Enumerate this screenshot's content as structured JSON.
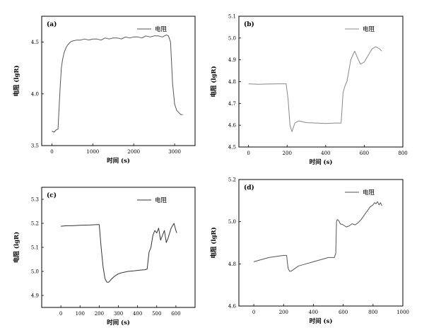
{
  "figure": {
    "panels": [
      {
        "panel_label": "(a)",
        "ylabel": "电阻 (lgR)",
        "xlabel": "时间 (s)",
        "legend": "电阻"
      },
      {
        "panel_label": "(b)",
        "ylabel": "电阻 (lgR)",
        "xlabel": "时间 (s)",
        "legend": "电阻"
      },
      {
        "panel_label": "(c)",
        "ylabel": "电阻 (lgR)",
        "xlabel": "时间 (s)",
        "legend": "电阻"
      },
      {
        "panel_label": "(d)",
        "ylabel": "电阻 (lgR)",
        "xlabel": "时间 (s)",
        "legend": "电阻"
      }
    ]
  },
  "chart_data": [
    {
      "type": "line",
      "title": "(a)",
      "xlabel": "时间 (s)",
      "ylabel": "电阻 (lgR)",
      "xlim": [
        -250,
        3500
      ],
      "ylim": [
        3.5,
        4.75
      ],
      "xticks": [
        0,
        1000,
        2000,
        3000
      ],
      "yticks": [
        3.5,
        4.0,
        4.5
      ],
      "ytick_format": "1",
      "legend_position": "top-right",
      "color": "#555555",
      "series": [
        {
          "name": "电阻",
          "x": [
            0,
            50,
            100,
            150,
            200,
            230,
            260,
            300,
            350,
            400,
            450,
            500,
            600,
            700,
            800,
            900,
            1000,
            1100,
            1200,
            1300,
            1400,
            1500,
            1600,
            1700,
            1800,
            1900,
            2000,
            2100,
            2200,
            2300,
            2400,
            2500,
            2600,
            2700,
            2800,
            2850,
            2900,
            2950,
            3000,
            3050,
            3100,
            3150,
            3200
          ],
          "y": [
            3.64,
            3.63,
            3.65,
            3.66,
            4.05,
            4.25,
            4.33,
            4.4,
            4.45,
            4.48,
            4.5,
            4.51,
            4.52,
            4.52,
            4.53,
            4.52,
            4.53,
            4.53,
            4.52,
            4.54,
            4.53,
            4.54,
            4.54,
            4.53,
            4.55,
            4.54,
            4.55,
            4.55,
            4.54,
            4.56,
            4.55,
            4.56,
            4.56,
            4.55,
            4.57,
            4.56,
            4.5,
            4.1,
            3.9,
            3.84,
            3.82,
            3.8,
            3.8
          ]
        }
      ]
    },
    {
      "type": "line",
      "title": "(b)",
      "xlabel": "时间 (s)",
      "ylabel": "电阻 (lgR)",
      "xlim": [
        -50,
        800
      ],
      "ylim": [
        4.5,
        5.1
      ],
      "xticks": [
        0,
        200,
        400,
        600,
        800
      ],
      "yticks": [
        4.5,
        4.6,
        4.7,
        4.8,
        4.9,
        5.0,
        5.1
      ],
      "ytick_format": "1",
      "legend_position": "top-right",
      "color": "#888888",
      "series": [
        {
          "name": "电阻",
          "x": [
            0,
            50,
            100,
            150,
            195,
            205,
            215,
            225,
            240,
            260,
            300,
            350,
            400,
            450,
            480,
            490,
            500,
            510,
            520,
            530,
            540,
            550,
            560,
            570,
            580,
            600,
            620,
            640,
            660,
            680,
            690
          ],
          "y": [
            4.79,
            4.788,
            4.789,
            4.79,
            4.79,
            4.72,
            4.6,
            4.57,
            4.61,
            4.62,
            4.612,
            4.61,
            4.608,
            4.61,
            4.61,
            4.75,
            4.78,
            4.8,
            4.85,
            4.9,
            4.92,
            4.94,
            4.92,
            4.9,
            4.88,
            4.89,
            4.92,
            4.95,
            4.96,
            4.95,
            4.94
          ]
        }
      ]
    },
    {
      "type": "line",
      "title": "(c)",
      "xlabel": "时间 (s)",
      "ylabel": "电阻 (lgR)",
      "xlim": [
        -100,
        700
      ],
      "ylim": [
        4.85,
        5.35
      ],
      "xticks": [
        0,
        100,
        200,
        300,
        400,
        500,
        600
      ],
      "yticks": [
        4.9,
        5.0,
        5.1,
        5.2,
        5.3
      ],
      "ytick_format": "1",
      "legend_position": "top-right",
      "color": "#333333",
      "series": [
        {
          "name": "电阻",
          "x": [
            0,
            30,
            60,
            100,
            150,
            190,
            200,
            210,
            220,
            230,
            240,
            250,
            260,
            280,
            300,
            320,
            350,
            380,
            400,
            420,
            440,
            450,
            460,
            470,
            480,
            490,
            500,
            510,
            520,
            530,
            540,
            550,
            560,
            575,
            590,
            600,
            605
          ],
          "y": [
            5.188,
            5.19,
            5.19,
            5.192,
            5.193,
            5.195,
            5.195,
            5.1,
            5.02,
            4.97,
            4.955,
            4.955,
            4.965,
            4.98,
            4.99,
            4.995,
            5.0,
            5.002,
            5.004,
            5.006,
            5.007,
            5.01,
            5.08,
            5.1,
            5.15,
            5.17,
            5.16,
            5.18,
            5.13,
            5.15,
            5.17,
            5.12,
            5.14,
            5.18,
            5.2,
            5.17,
            5.16
          ]
        }
      ]
    },
    {
      "type": "line",
      "title": "(d)",
      "xlabel": "时间 (s)",
      "ylabel": "电阻 (lgR)",
      "xlim": [
        -100,
        1000
      ],
      "ylim": [
        4.6,
        5.2
      ],
      "xticks": [
        0,
        200,
        400,
        600,
        800,
        1000
      ],
      "yticks": [
        4.6,
        4.8,
        5.0,
        5.2
      ],
      "ytick_format": "1",
      "legend_position": "top-right",
      "color": "#555555",
      "series": [
        {
          "name": "电阻",
          "x": [
            0,
            50,
            100,
            150,
            200,
            220,
            230,
            240,
            250,
            270,
            300,
            350,
            400,
            450,
            500,
            540,
            550,
            555,
            560,
            570,
            580,
            600,
            620,
            640,
            660,
            680,
            700,
            720,
            740,
            760,
            780,
            800,
            810,
            820,
            830,
            840,
            850,
            860
          ],
          "y": [
            4.81,
            4.82,
            4.83,
            4.835,
            4.84,
            4.84,
            4.78,
            4.765,
            4.765,
            4.775,
            4.79,
            4.8,
            4.81,
            4.82,
            4.83,
            4.83,
            4.85,
            5.0,
            5.01,
            5.005,
            4.99,
            4.985,
            4.975,
            4.98,
            4.99,
            4.985,
            4.995,
            5.01,
            5.03,
            5.05,
            5.07,
            5.08,
            5.09,
            5.085,
            5.095,
            5.08,
            5.09,
            5.075
          ]
        }
      ]
    }
  ]
}
